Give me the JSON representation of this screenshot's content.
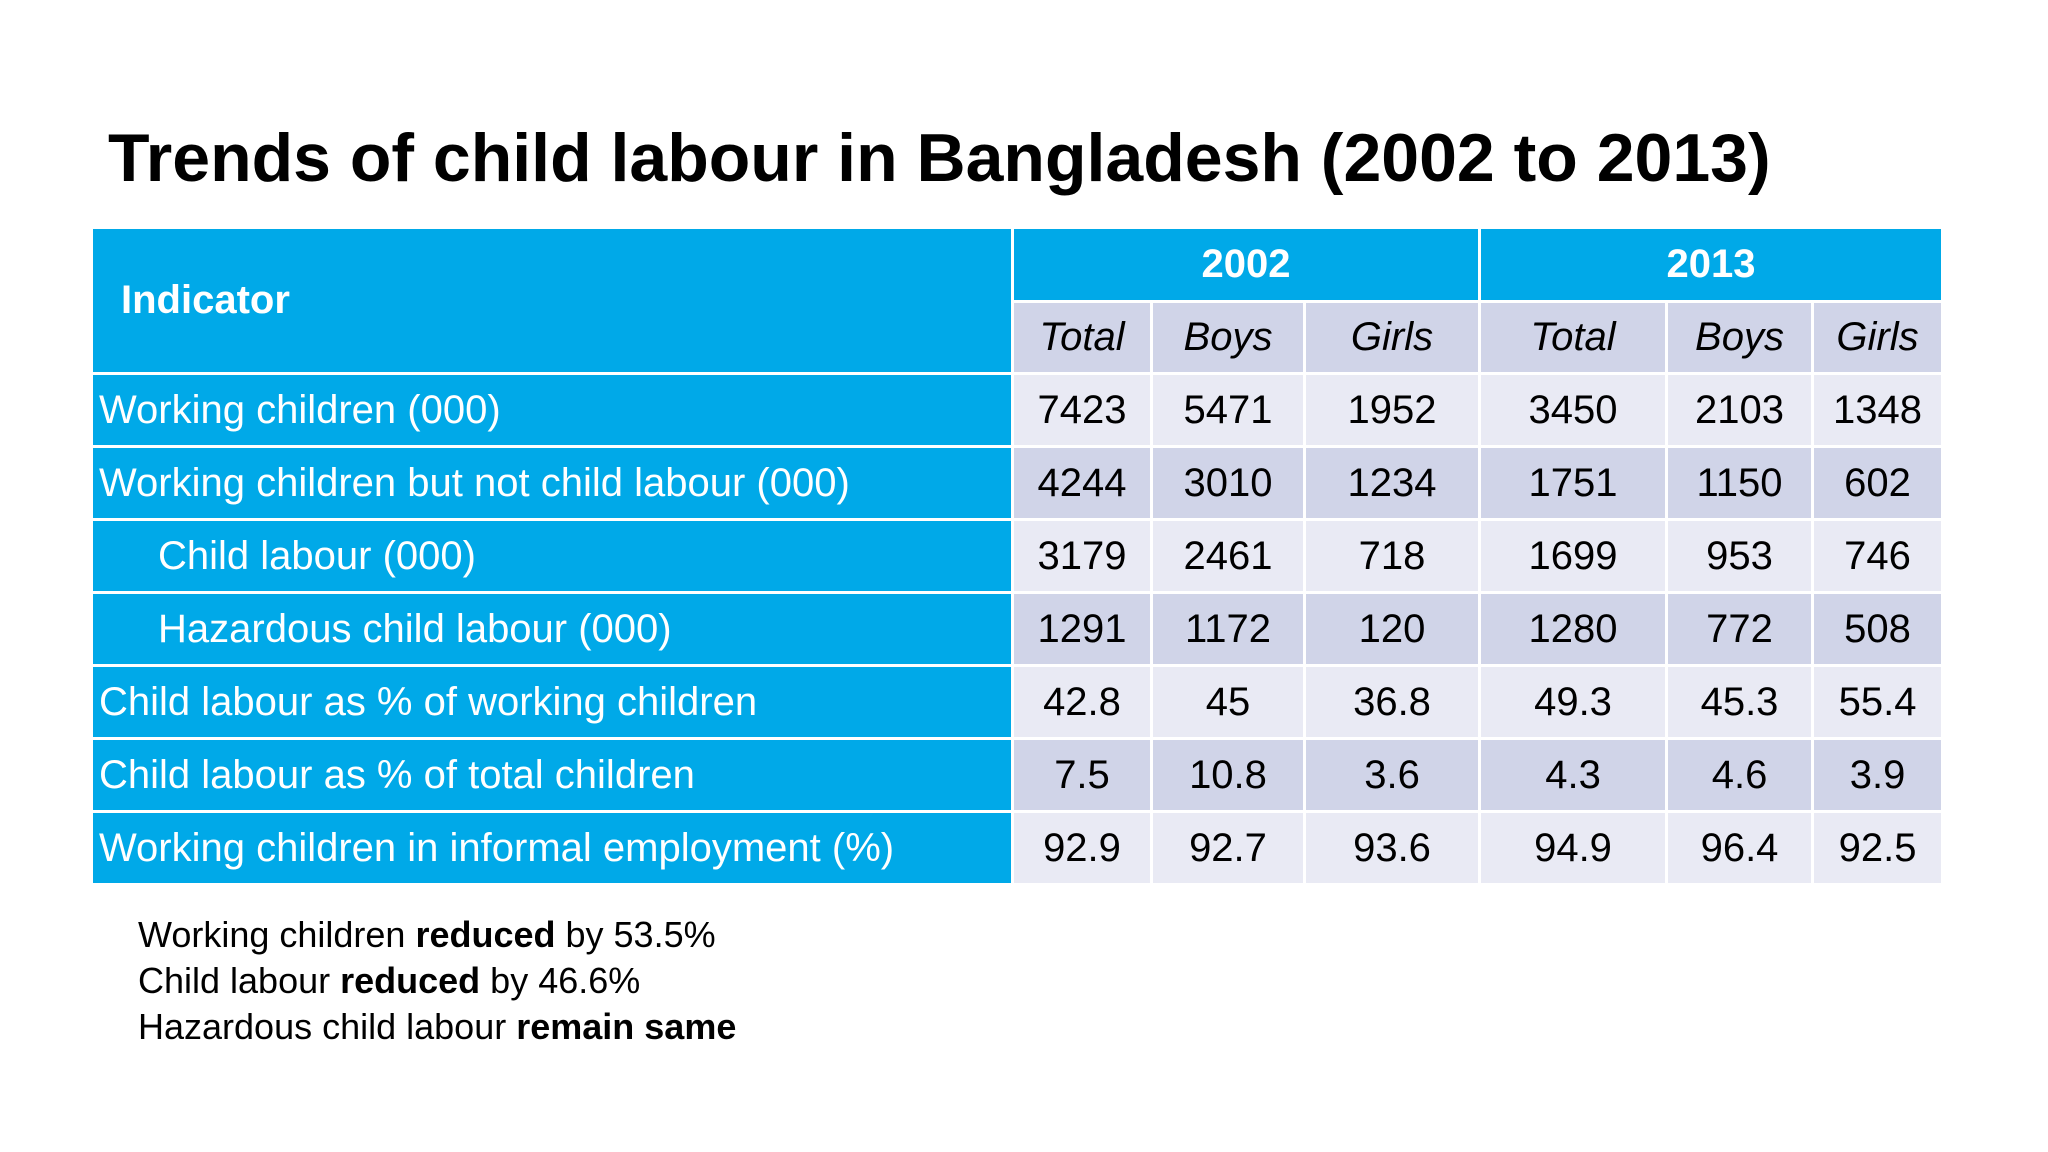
{
  "title": "Trends of child labour in Bangladesh (2002 to 2013)",
  "table": {
    "indicator_header": "Indicator",
    "years": [
      "2002",
      "2013"
    ],
    "subheaders": [
      "Total",
      "Boys",
      "Girls",
      "Total",
      "Boys",
      "Girls"
    ],
    "rows": [
      {
        "label": "Working children (000)",
        "values": [
          "7423",
          "5471",
          "1952",
          "3450",
          "2103",
          "1348"
        ]
      },
      {
        "label": "Working children but not child labour (000)",
        "values": [
          "4244",
          "3010",
          "1234",
          "1751",
          "1150",
          "602"
        ]
      },
      {
        "label": "Child labour (000)",
        "values": [
          "3179",
          "2461",
          "718",
          "1699",
          "953",
          "746"
        ]
      },
      {
        "label": "Hazardous child labour (000)",
        "values": [
          "1291",
          "1172",
          "120",
          "1280",
          "772",
          "508"
        ]
      },
      {
        "label": "Child labour as % of working children",
        "values": [
          "42.8",
          "45",
          "36.8",
          "49.3",
          "45.3",
          "55.4"
        ]
      },
      {
        "label": "Child labour as % of total children",
        "values": [
          "7.5",
          "10.8",
          "3.6",
          "4.3",
          "4.6",
          "3.9"
        ]
      },
      {
        "label": "Working children in informal employment (%)",
        "values": [
          "92.9",
          "92.7",
          "93.6",
          "94.9",
          "96.4",
          "92.5"
        ]
      }
    ]
  },
  "notes": [
    {
      "pre": "Working children ",
      "bold": "reduced",
      "post": " by 53.5%"
    },
    {
      "pre": "Child labour ",
      "bold": "reduced",
      "post": " by 46.6%"
    },
    {
      "pre": "Hazardous child labour ",
      "bold": "remain same",
      "post": ""
    }
  ],
  "colors": {
    "header_blue": "#00a9e8",
    "cell_light": "#e9eaf4",
    "cell_dark": "#d0d4e8"
  }
}
